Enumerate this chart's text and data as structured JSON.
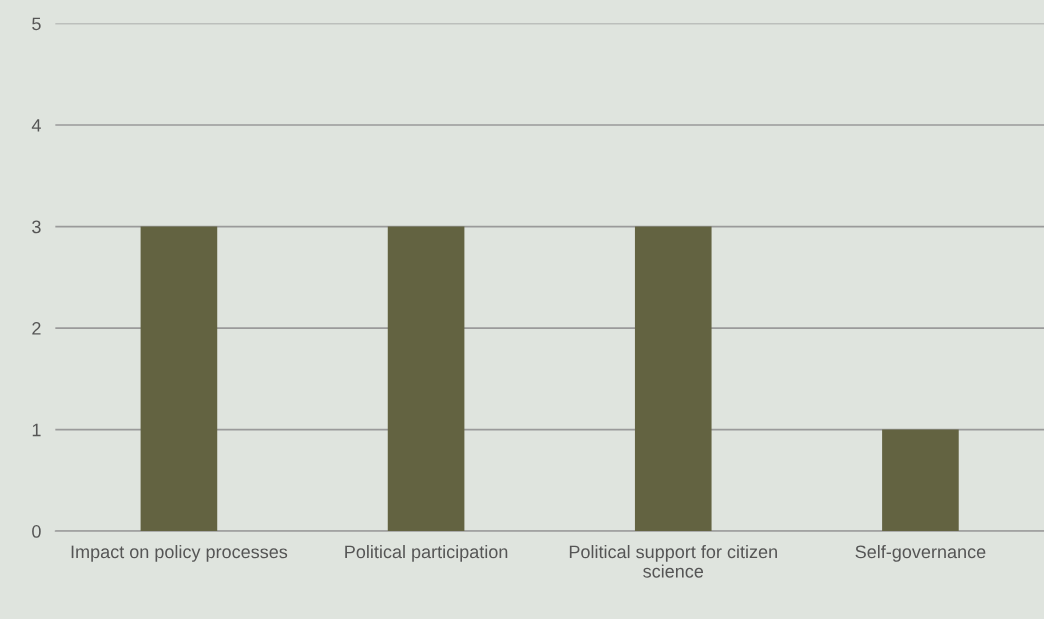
{
  "chart_data": {
    "type": "bar",
    "categories": [
      "Impact on policy processes",
      "Political participation",
      "Political support for citizen\nscience",
      "Self-governance"
    ],
    "values": [
      3,
      3,
      3,
      1
    ],
    "color": "#636341",
    "ylim": [
      0,
      5
    ],
    "yticks": [
      0,
      1,
      2,
      3,
      4,
      5
    ],
    "grid": "y"
  }
}
